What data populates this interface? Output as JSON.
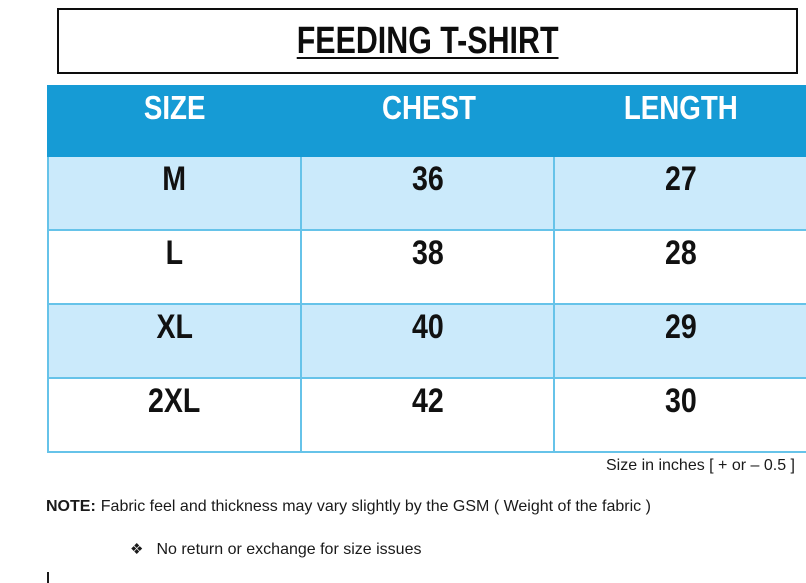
{
  "title": "FEEDING T-SHIRT",
  "table": {
    "headers": [
      "SIZE",
      "CHEST",
      "LENGTH"
    ],
    "rows": [
      [
        "M",
        "36",
        "27"
      ],
      [
        "L",
        "38",
        "28"
      ],
      [
        "XL",
        "40",
        "29"
      ],
      [
        "2XL",
        "42",
        "30"
      ]
    ]
  },
  "footnote": "Size in inches [ + or – 0.5 ]",
  "note": {
    "label": "NOTE:",
    "text": "Fabric feel and thickness may vary slightly by the GSM ( Weight of the fabric )"
  },
  "bullet": {
    "icon": "❖",
    "text": "No return or exchange for size issues"
  },
  "colors": {
    "header_bg": "#169BD5",
    "row_alt_bg": "#CBEAFB",
    "cell_border": "#66C3E9"
  }
}
